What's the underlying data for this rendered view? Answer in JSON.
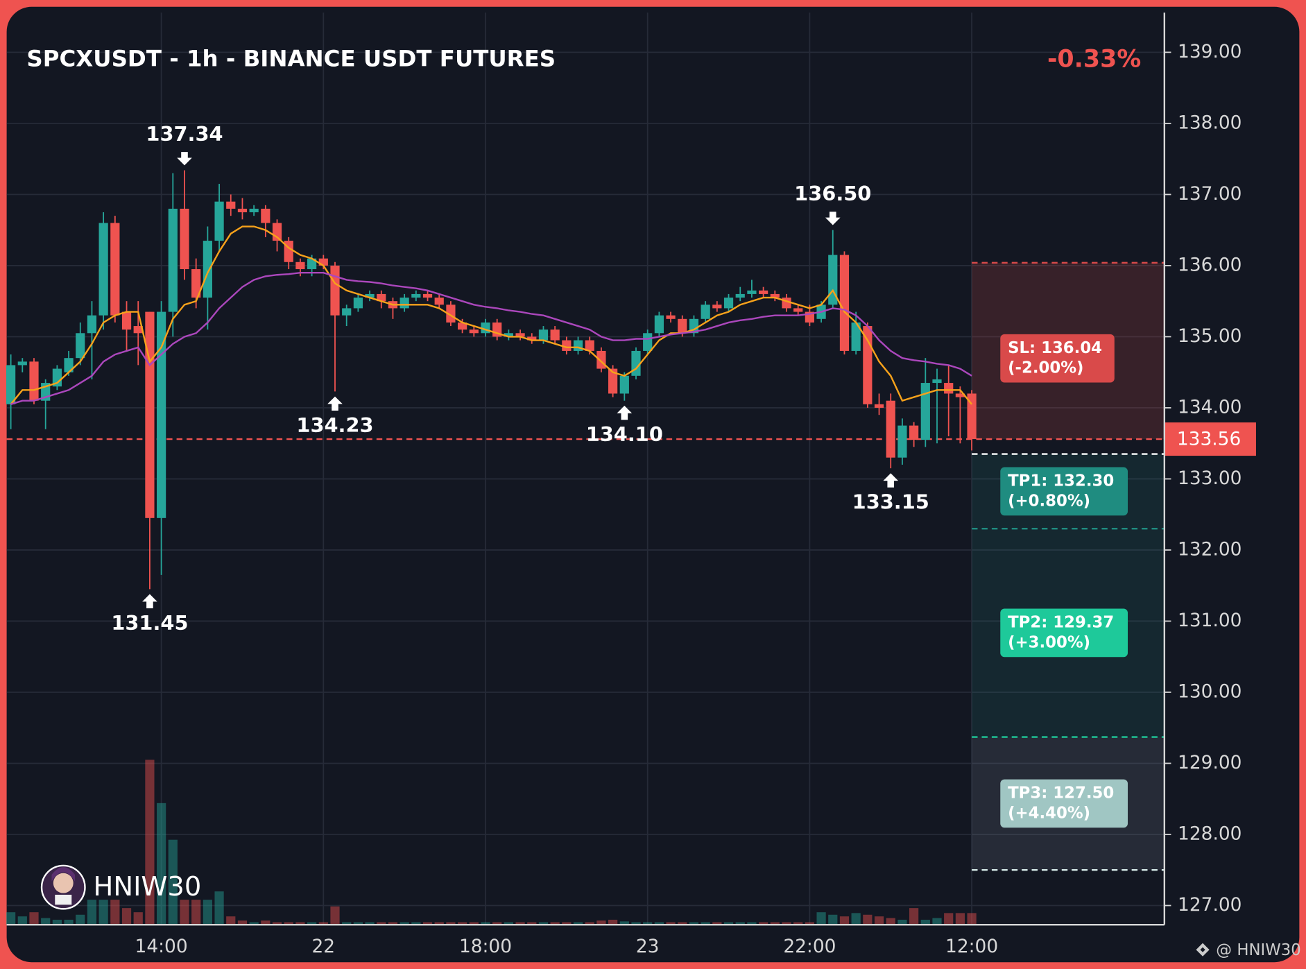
{
  "chart_data": {
    "type": "candlestick",
    "title": "SPCXUSDT - 1h - BINANCE USDT FUTURES",
    "change": "-0.33%",
    "categories": [
      null,
      null,
      null,
      null,
      null,
      null,
      null,
      null,
      null,
      null,
      null,
      null,
      null,
      "14:00",
      null,
      null,
      null,
      null,
      null,
      null,
      null,
      null,
      null,
      null,
      null,
      null,
      null,
      "22",
      null,
      null,
      null,
      null,
      null,
      null,
      null,
      null,
      null,
      null,
      null,
      null,
      null,
      "18:00",
      null,
      null,
      null,
      null,
      null,
      null,
      null,
      null,
      null,
      null,
      null,
      null,
      null,
      "23",
      null,
      null,
      null,
      null,
      null,
      null,
      null,
      null,
      null,
      null,
      null,
      null,
      null,
      "22:00",
      null,
      null,
      null,
      null,
      null,
      null,
      null,
      null,
      null,
      null,
      null,
      null,
      null,
      "12:00"
    ],
    "open": [
      134.05,
      134.6,
      134.65,
      134.1,
      134.3,
      134.5,
      134.7,
      135.05,
      135.3,
      136.6,
      135.35,
      135.15,
      135.35,
      132.45,
      135.35,
      136.8,
      135.95,
      135.55,
      136.35,
      136.9,
      136.8,
      136.75,
      136.8,
      136.6,
      136.35,
      136.05,
      135.95,
      136.1,
      136.0,
      135.3,
      135.4,
      135.55,
      135.6,
      135.5,
      135.4,
      135.55,
      135.6,
      135.55,
      135.45,
      135.2,
      135.1,
      135.05,
      135.2,
      135.0,
      135.05,
      135.0,
      134.95,
      135.1,
      134.95,
      134.8,
      134.95,
      134.8,
      134.55,
      134.2,
      134.45,
      134.8,
      135.05,
      135.3,
      135.25,
      135.05,
      135.25,
      135.45,
      135.4,
      135.55,
      135.6,
      135.65,
      135.6,
      135.55,
      135.4,
      135.35,
      135.25,
      135.45,
      136.15,
      134.8,
      135.15,
      134.05,
      134.1,
      133.3,
      133.75,
      133.55,
      134.35,
      134.35,
      134.2,
      134.2
    ],
    "high": [
      134.75,
      134.7,
      134.7,
      134.4,
      134.6,
      134.8,
      135.2,
      135.5,
      136.75,
      136.7,
      135.5,
      135.5,
      135.35,
      135.5,
      137.3,
      137.34,
      136.1,
      136.55,
      137.15,
      137.0,
      136.95,
      136.85,
      136.85,
      136.65,
      136.4,
      136.1,
      136.15,
      136.15,
      136.05,
      135.45,
      135.6,
      135.65,
      135.65,
      135.55,
      135.6,
      135.65,
      135.65,
      135.6,
      135.5,
      135.25,
      135.15,
      135.25,
      135.25,
      135.1,
      135.1,
      135.05,
      135.15,
      135.15,
      135.0,
      135.0,
      135.0,
      134.85,
      134.6,
      134.5,
      134.85,
      135.1,
      135.35,
      135.35,
      135.3,
      135.3,
      135.5,
      135.5,
      135.6,
      135.7,
      135.8,
      135.7,
      135.65,
      135.6,
      135.45,
      135.45,
      135.5,
      136.5,
      136.2,
      135.35,
      135.2,
      134.2,
      134.2,
      133.85,
      133.8,
      134.7,
      134.55,
      134.6,
      134.3,
      134.25
    ],
    "low": [
      133.7,
      134.5,
      134.05,
      133.7,
      134.25,
      134.45,
      134.6,
      134.4,
      135.1,
      135.2,
      134.8,
      134.6,
      131.45,
      131.65,
      135.0,
      135.8,
      135.4,
      135.1,
      136.2,
      136.7,
      136.65,
      136.7,
      136.4,
      136.2,
      135.95,
      135.85,
      135.85,
      135.95,
      134.23,
      135.15,
      135.35,
      135.5,
      135.4,
      135.25,
      135.35,
      135.5,
      135.5,
      135.4,
      135.15,
      135.05,
      135.0,
      135.0,
      134.95,
      134.95,
      134.95,
      134.9,
      134.9,
      134.9,
      134.75,
      134.75,
      134.75,
      134.5,
      134.15,
      134.1,
      134.4,
      134.75,
      135.0,
      135.2,
      135.0,
      135.0,
      135.2,
      135.35,
      135.35,
      135.5,
      135.55,
      135.55,
      135.5,
      135.35,
      135.3,
      135.15,
      135.2,
      135.4,
      134.75,
      134.75,
      134.0,
      133.9,
      133.15,
      133.2,
      133.45,
      133.45,
      133.5,
      133.6,
      133.5,
      133.4
    ],
    "close": [
      134.6,
      134.65,
      134.1,
      134.35,
      134.55,
      134.7,
      135.05,
      135.3,
      136.6,
      135.3,
      135.1,
      135.05,
      132.45,
      135.35,
      136.8,
      135.95,
      135.55,
      136.35,
      136.9,
      136.8,
      136.75,
      136.8,
      136.6,
      136.35,
      136.05,
      135.95,
      136.1,
      136.0,
      135.3,
      135.4,
      135.55,
      135.6,
      135.5,
      135.4,
      135.55,
      135.6,
      135.55,
      135.45,
      135.2,
      135.1,
      135.05,
      135.2,
      135.0,
      135.05,
      135.0,
      134.95,
      135.1,
      134.95,
      134.8,
      134.95,
      134.8,
      134.55,
      134.2,
      134.45,
      134.8,
      135.05,
      135.3,
      135.25,
      135.05,
      135.25,
      135.45,
      135.4,
      135.55,
      135.6,
      135.65,
      135.6,
      135.55,
      135.4,
      135.35,
      135.2,
      135.45,
      136.15,
      134.8,
      135.2,
      134.05,
      134.0,
      133.3,
      133.75,
      133.55,
      134.35,
      134.4,
      134.2,
      134.15,
      133.56
    ],
    "volume": [
      15,
      10,
      15,
      8,
      6,
      6,
      12,
      30,
      30,
      30,
      20,
      15,
      198,
      146,
      102,
      30,
      30,
      30,
      40,
      10,
      5,
      3,
      5,
      3,
      3,
      3,
      3,
      3,
      22,
      3,
      3,
      3,
      3,
      3,
      3,
      3,
      3,
      3,
      3,
      3,
      3,
      3,
      3,
      3,
      3,
      3,
      3,
      3,
      3,
      3,
      3,
      5,
      6,
      4,
      3,
      3,
      3,
      3,
      3,
      3,
      3,
      3,
      3,
      3,
      3,
      3,
      3,
      3,
      3,
      3,
      15,
      12,
      10,
      14,
      12,
      10,
      8,
      6,
      20,
      6,
      8,
      14,
      14,
      14
    ],
    "up_color": "#26a69a",
    "down_color": "#ef5350",
    "moving_averages": [
      {
        "color": "#f7a21b",
        "values": [
          134.05,
          134.25,
          134.25,
          134.3,
          134.35,
          134.5,
          134.65,
          134.9,
          135.2,
          135.3,
          135.35,
          135.35,
          134.65,
          134.85,
          135.25,
          135.45,
          135.5,
          135.9,
          136.2,
          136.45,
          136.55,
          136.55,
          136.5,
          136.4,
          136.25,
          136.15,
          136.1,
          136.0,
          135.75,
          135.65,
          135.6,
          135.55,
          135.5,
          135.45,
          135.45,
          135.45,
          135.45,
          135.4,
          135.3,
          135.2,
          135.15,
          135.1,
          135.05,
          135.0,
          135.0,
          134.95,
          134.95,
          134.9,
          134.85,
          134.85,
          134.8,
          134.65,
          134.5,
          134.45,
          134.55,
          134.75,
          134.95,
          135.05,
          135.05,
          135.1,
          135.2,
          135.3,
          135.35,
          135.45,
          135.5,
          135.55,
          135.55,
          135.5,
          135.45,
          135.4,
          135.45,
          135.65,
          135.35,
          135.2,
          134.95,
          134.65,
          134.45,
          134.1,
          134.15,
          134.2,
          134.25,
          134.25,
          134.25,
          134.05
        ]
      },
      {
        "color": "#ab47bc",
        "values": [
          134.05,
          134.1,
          134.1,
          134.15,
          134.2,
          134.25,
          134.35,
          134.45,
          134.65,
          134.75,
          134.8,
          134.85,
          134.6,
          134.75,
          134.9,
          135.0,
          135.05,
          135.2,
          135.4,
          135.55,
          135.7,
          135.8,
          135.85,
          135.87,
          135.88,
          135.9,
          135.9,
          135.9,
          135.85,
          135.8,
          135.78,
          135.77,
          135.75,
          135.72,
          135.7,
          135.68,
          135.65,
          135.6,
          135.55,
          135.5,
          135.45,
          135.42,
          135.4,
          135.37,
          135.35,
          135.32,
          135.3,
          135.25,
          135.2,
          135.15,
          135.1,
          135.0,
          134.95,
          134.95,
          134.97,
          134.97,
          135.0,
          135.03,
          135.05,
          135.07,
          135.1,
          135.15,
          135.2,
          135.23,
          135.25,
          135.28,
          135.3,
          135.3,
          135.3,
          135.32,
          135.35,
          135.4,
          135.38,
          135.3,
          135.15,
          134.95,
          134.8,
          134.7,
          134.67,
          134.65,
          134.62,
          134.6,
          134.55,
          134.45
        ]
      }
    ],
    "ylim": [
      126.73,
      139.64
    ],
    "yticks": [
      {
        "value": 127,
        "label": "127.00"
      },
      {
        "value": 128,
        "label": "128.00"
      },
      {
        "value": 129,
        "label": "129.00"
      },
      {
        "value": 130,
        "label": "130.00"
      },
      {
        "value": 131,
        "label": "131.00"
      },
      {
        "value": 132,
        "label": "132.00"
      },
      {
        "value": 133,
        "label": "133.00"
      },
      {
        "value": 134,
        "label": "134.00"
      },
      {
        "value": 135,
        "label": "135.00"
      },
      {
        "value": 136,
        "label": "136.00"
      },
      {
        "value": 137,
        "label": "137.00"
      },
      {
        "value": 138,
        "label": "138.00"
      },
      {
        "value": 139,
        "label": "139.00"
      }
    ],
    "grid": true,
    "last_price": {
      "value": 133.56,
      "label": "133.56"
    },
    "annotations": [
      {
        "index": 12,
        "value": 131.45,
        "label": "131.45",
        "kind": "low"
      },
      {
        "index": 15,
        "value": 137.34,
        "label": "137.34",
        "kind": "high"
      },
      {
        "index": 28,
        "value": 134.23,
        "label": "134.23",
        "kind": "low"
      },
      {
        "index": 53,
        "value": 134.1,
        "label": "134.10",
        "kind": "low"
      },
      {
        "index": 71,
        "value": 136.5,
        "label": "136.50",
        "kind": "high"
      },
      {
        "index": 76,
        "value": 133.15,
        "label": "133.15",
        "kind": "low"
      }
    ],
    "trade_levels": {
      "entry": 133.35,
      "stop": {
        "value": 136.04,
        "lines": [
          "SL: 136.04",
          "(-2.00%)"
        ],
        "color": "#d94a4a"
      },
      "targets": [
        {
          "value": 132.3,
          "lines": [
            "TP1: 132.30",
            "(+0.80%)"
          ],
          "color": "#1f8c80"
        },
        {
          "value": 129.37,
          "lines": [
            "TP2: 129.37",
            "(+3.00%)"
          ],
          "color": "#1ec99a"
        },
        {
          "value": 127.5,
          "lines": [
            "TP3: 127.50",
            "(+4.40%)"
          ],
          "color": "#a0c6c3"
        }
      ]
    }
  },
  "watermark": "HNIW30",
  "credit": "@ HNIW30"
}
